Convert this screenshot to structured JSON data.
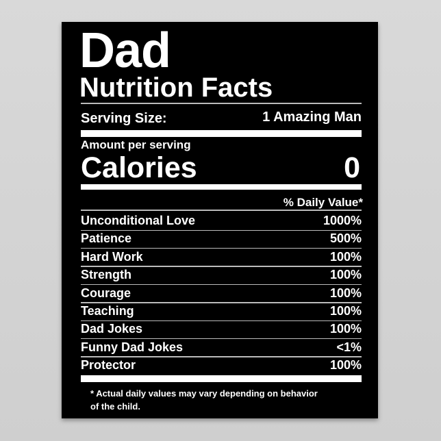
{
  "title_line1": "Dad",
  "title_line2": "Nutrition Facts",
  "serving": {
    "label": "Serving Size:",
    "value": "1 Amazing Man"
  },
  "amount_per_serving": "Amount per serving",
  "calories": {
    "label": "Calories",
    "value": "0"
  },
  "daily_value_header": "% Daily Value*",
  "nutrients": [
    {
      "name": "Unconditional Love",
      "value": "1000%"
    },
    {
      "name": "Patience",
      "value": "500%"
    },
    {
      "name": "Hard Work",
      "value": "100%"
    },
    {
      "name": "Strength",
      "value": "100%"
    },
    {
      "name": "Courage",
      "value": "100%"
    },
    {
      "name": "Teaching",
      "value": "100%"
    },
    {
      "name": "Dad Jokes",
      "value": "100%"
    },
    {
      "name": "Funny Dad Jokes",
      "value": "<1%"
    },
    {
      "name": "Protector",
      "value": "100%"
    }
  ],
  "footnote_line1": "* Actual daily values may vary depending on behavior",
  "footnote_line2": "of the child.",
  "colors": {
    "poster_bg": "#000000",
    "text": "#ffffff",
    "wall": "#d6d6d6"
  }
}
